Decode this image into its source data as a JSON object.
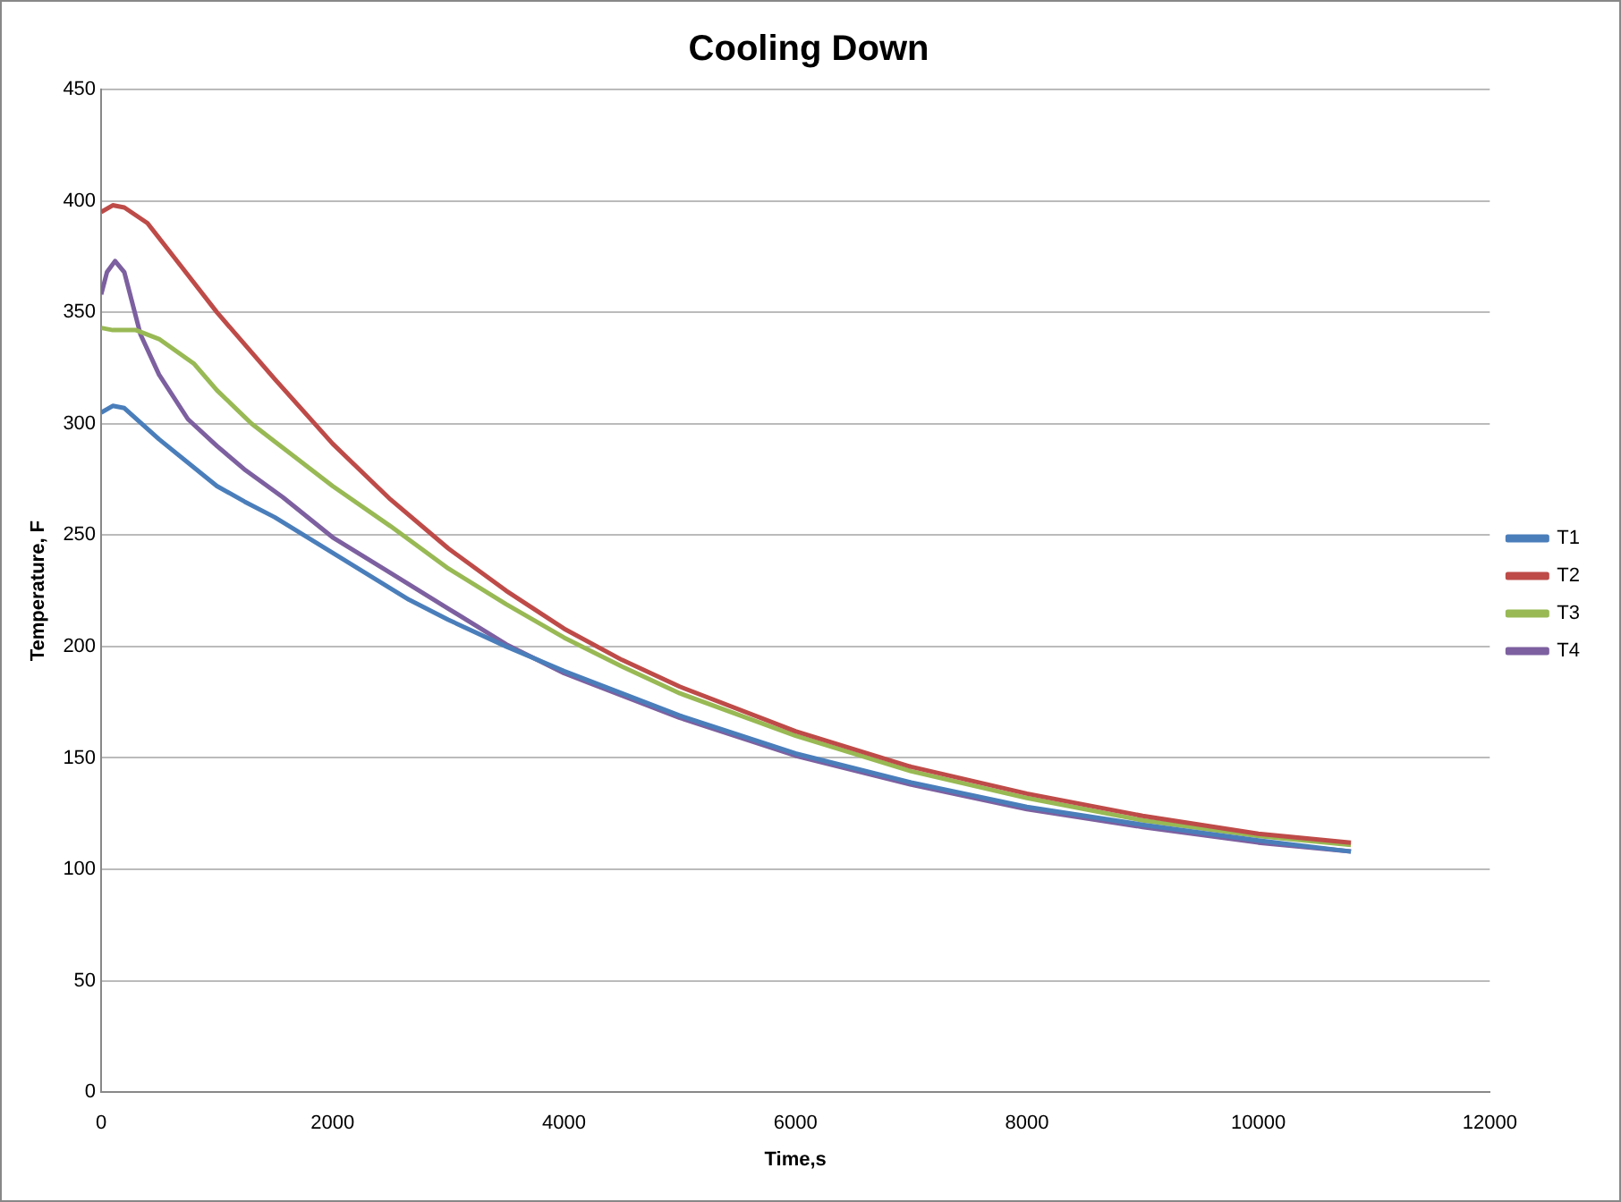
{
  "chart_data": {
    "type": "line",
    "title": "Cooling Down",
    "xlabel": "Time,s",
    "ylabel": "Temperature, F",
    "xlim": [
      0,
      12000
    ],
    "xticks": [
      0,
      2000,
      4000,
      6000,
      8000,
      10000,
      12000
    ],
    "ylim": [
      0,
      450
    ],
    "yticks": [
      0,
      50,
      100,
      150,
      200,
      250,
      300,
      350,
      400,
      450
    ],
    "grid": "y",
    "legend": "right",
    "marker": "none",
    "line_style": "solid",
    "series": [
      {
        "name": "T1",
        "color": "#4a7ebb",
        "x": [
          0,
          100,
          200,
          500,
          1000,
          1240,
          1500,
          2000,
          2660,
          3000,
          3500,
          4000,
          5000,
          6000,
          7000,
          8000,
          9000,
          10000,
          10800
        ],
        "values": [
          305,
          308,
          307,
          293,
          272,
          265,
          258,
          242,
          221,
          212,
          200,
          189,
          169,
          152,
          139,
          128,
          120,
          113,
          108
        ]
      },
      {
        "name": "T2",
        "color": "#be4b48",
        "x": [
          0,
          100,
          200,
          400,
          700,
          1000,
          1500,
          2000,
          2500,
          3000,
          3500,
          4000,
          4500,
          5000,
          6000,
          7000,
          8000,
          9000,
          10000,
          10800
        ],
        "values": [
          395,
          398,
          397,
          390,
          370,
          350,
          320,
          291,
          266,
          244,
          225,
          208,
          194,
          182,
          162,
          146,
          134,
          124,
          116,
          112
        ]
      },
      {
        "name": "T3",
        "color": "#98b954",
        "x": [
          0,
          100,
          300,
          500,
          800,
          1000,
          1300,
          1500,
          2000,
          2500,
          3000,
          3500,
          4000,
          4500,
          5000,
          6000,
          7000,
          8000,
          9000,
          10000,
          10800
        ],
        "values": [
          343,
          342,
          342,
          338,
          327,
          315,
          300,
          292,
          272,
          254,
          235,
          219,
          204,
          191,
          179,
          160,
          144,
          132,
          122,
          115,
          111
        ]
      },
      {
        "name": "T4",
        "color": "#7d60a0",
        "x": [
          0,
          50,
          120,
          200,
          340,
          500,
          750,
          1000,
          1250,
          1570,
          2000,
          2500,
          3000,
          3500,
          4000,
          5000,
          6000,
          7000,
          8000,
          9000,
          10000,
          10800
        ],
        "values": [
          358,
          368,
          373,
          368,
          340,
          322,
          302,
          290,
          279,
          267,
          249,
          233,
          217,
          201,
          188,
          168,
          151,
          138,
          127,
          119,
          112,
          108
        ]
      }
    ]
  }
}
